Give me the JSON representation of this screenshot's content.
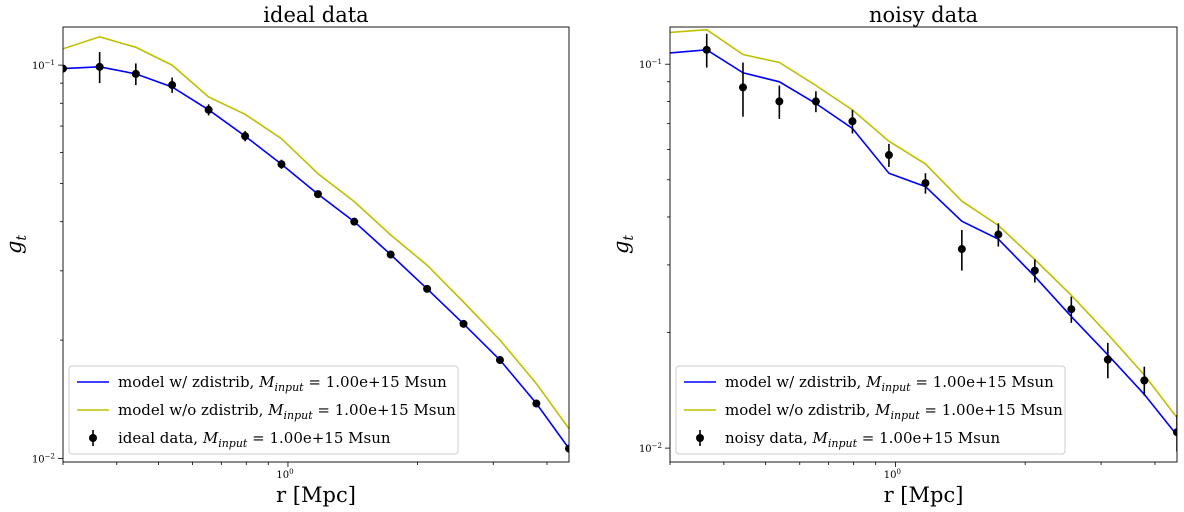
{
  "chart_data": [
    {
      "type": "line",
      "title": "ideal data",
      "xlabel": "r [Mpc]",
      "ylabel_base": "g",
      "ylabel_sub": "t",
      "x_scale": "log",
      "y_scale": "log",
      "xlim": [
        0.3,
        4.5
      ],
      "ylim": [
        0.0098,
        0.125
      ],
      "x_major_tick_label": "10",
      "x_major_tick_exp": "0",
      "y_tick_labels": [
        {
          "value": 0.1,
          "base": "10",
          "exp": "−1"
        },
        {
          "value": 0.01,
          "base": "10",
          "exp": "−2"
        }
      ],
      "grid": false,
      "legend_position": "lower-left",
      "series": [
        {
          "name": "model w/ zdistrib, ",
          "mass_symbol": "M",
          "mass_sub": "input",
          "name_suffix": " = 1.00e+15 Msun",
          "kind": "line",
          "color": "#0000ff",
          "x": [
            0.3,
            0.365,
            0.443,
            0.538,
            0.654,
            0.795,
            0.966,
            1.174,
            1.426,
            1.733,
            2.106,
            2.559,
            3.11,
            3.779,
            4.5
          ],
          "y": [
            0.098,
            0.099,
            0.095,
            0.088,
            0.077,
            0.066,
            0.056,
            0.047,
            0.04,
            0.033,
            0.027,
            0.022,
            0.0178,
            0.0138,
            0.0106
          ]
        },
        {
          "name": "model w/o zdistrib, ",
          "mass_symbol": "M",
          "mass_sub": "input",
          "name_suffix": " = 1.00e+15 Msun",
          "kind": "line",
          "color": "#bfbf00",
          "x": [
            0.3,
            0.365,
            0.443,
            0.538,
            0.654,
            0.795,
            0.966,
            1.174,
            1.426,
            1.733,
            2.106,
            2.559,
            3.11,
            3.779,
            4.5
          ],
          "y": [
            0.11,
            0.118,
            0.111,
            0.1,
            0.083,
            0.075,
            0.065,
            0.053,
            0.045,
            0.037,
            0.031,
            0.025,
            0.02,
            0.0155,
            0.0119
          ]
        },
        {
          "name": "ideal data, ",
          "mass_symbol": "M",
          "mass_sub": "input",
          "name_suffix": " = 1.00e+15 Msun",
          "kind": "errorbar",
          "color": "#000000",
          "x": [
            0.3,
            0.365,
            0.443,
            0.538,
            0.654,
            0.795,
            0.966,
            1.174,
            1.426,
            1.733,
            2.106,
            2.559,
            3.11,
            3.779,
            4.5
          ],
          "y": [
            0.098,
            0.099,
            0.095,
            0.089,
            0.077,
            0.066,
            0.056,
            0.047,
            0.04,
            0.033,
            0.027,
            0.022,
            0.0178,
            0.0138,
            0.0106
          ],
          "yerr": [
            0.0,
            0.009,
            0.006,
            0.004,
            0.0025,
            0.002,
            0.0015,
            0.0008,
            0.0005,
            0.0004,
            0.0003,
            0.0002,
            0.00015,
            0.0001,
            0.0001
          ]
        }
      ]
    },
    {
      "type": "line",
      "title": "noisy data",
      "xlabel": "r [Mpc]",
      "ylabel_base": "g",
      "ylabel_sub": "t",
      "x_scale": "log",
      "y_scale": "log",
      "xlim": [
        0.3,
        4.5
      ],
      "ylim": [
        0.0092,
        0.125
      ],
      "x_major_tick_label": "10",
      "x_major_tick_exp": "0",
      "y_tick_labels": [
        {
          "value": 0.1,
          "base": "10",
          "exp": "−1"
        },
        {
          "value": 0.01,
          "base": "10",
          "exp": "−2"
        }
      ],
      "grid": false,
      "legend_position": "lower-left",
      "series": [
        {
          "name": "model w/ zdistrib, ",
          "mass_symbol": "M",
          "mass_sub": "input",
          "name_suffix": " = 1.00e+15 Msun",
          "kind": "line",
          "color": "#0000ff",
          "x": [
            0.3,
            0.365,
            0.443,
            0.538,
            0.654,
            0.795,
            0.966,
            1.174,
            1.426,
            1.733,
            2.106,
            2.559,
            3.11,
            3.779,
            4.5
          ],
          "y": [
            0.107,
            0.109,
            0.095,
            0.09,
            0.079,
            0.068,
            0.052,
            0.048,
            0.039,
            0.035,
            0.028,
            0.022,
            0.0175,
            0.0138,
            0.0108
          ]
        },
        {
          "name": "model w/o zdistrib, ",
          "mass_symbol": "M",
          "mass_sub": "input",
          "name_suffix": " = 1.00e+15 Msun",
          "kind": "line",
          "color": "#bfbf00",
          "x": [
            0.3,
            0.365,
            0.443,
            0.538,
            0.654,
            0.795,
            0.966,
            1.174,
            1.426,
            1.733,
            2.106,
            2.559,
            3.11,
            3.779,
            4.5
          ],
          "y": [
            0.121,
            0.123,
            0.106,
            0.101,
            0.088,
            0.076,
            0.063,
            0.055,
            0.044,
            0.038,
            0.031,
            0.025,
            0.0198,
            0.0155,
            0.012
          ]
        },
        {
          "name": "noisy data, ",
          "mass_symbol": "M",
          "mass_sub": "input",
          "name_suffix": " = 1.00e+15 Msun",
          "kind": "errorbar",
          "color": "#000000",
          "x": [
            0.365,
            0.443,
            0.538,
            0.654,
            0.795,
            0.966,
            1.174,
            1.426,
            1.733,
            2.106,
            2.559,
            3.11,
            3.779,
            4.5
          ],
          "y": [
            0.109,
            0.087,
            0.08,
            0.08,
            0.071,
            0.058,
            0.049,
            0.033,
            0.036,
            0.029,
            0.023,
            0.017,
            0.015,
            0.011
          ],
          "yerr": [
            0.011,
            0.014,
            0.008,
            0.005,
            0.005,
            0.004,
            0.003,
            0.004,
            0.0025,
            0.002,
            0.0018,
            0.0018,
            0.0013,
            0.0012
          ]
        }
      ]
    }
  ]
}
